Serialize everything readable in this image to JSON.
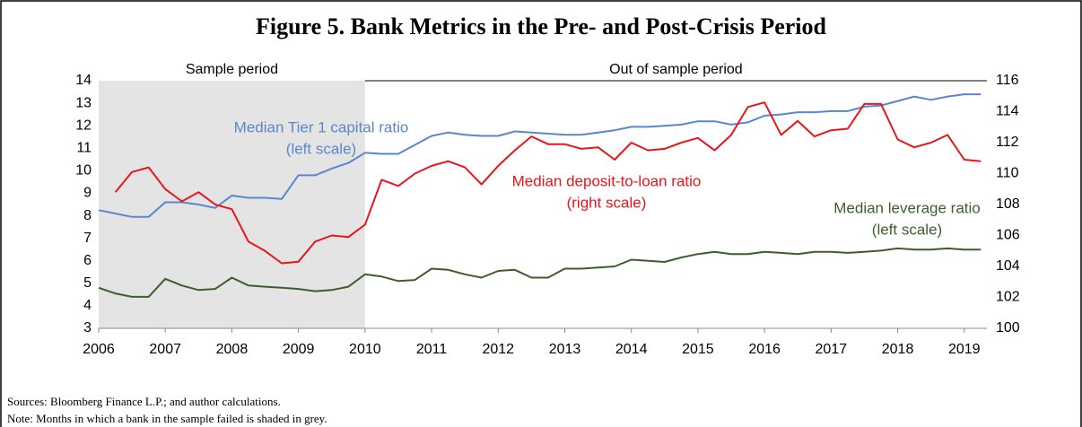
{
  "chart_data": {
    "type": "line",
    "title": "Figure 5. Bank Metrics in the Pre- and Post-Crisis Period",
    "sample_label": "Sample period",
    "out_of_sample_label": "Out of sample period",
    "shade_x": [
      2006,
      2010
    ],
    "x": [
      2006,
      2006.25,
      2006.5,
      2006.75,
      2007,
      2007.25,
      2007.5,
      2007.75,
      2008,
      2008.25,
      2008.5,
      2008.75,
      2009,
      2009.25,
      2009.5,
      2009.75,
      2010,
      2010.25,
      2010.5,
      2010.75,
      2011,
      2011.25,
      2011.5,
      2011.75,
      2012,
      2012.25,
      2012.5,
      2012.75,
      2013,
      2013.25,
      2013.5,
      2013.75,
      2014,
      2014.25,
      2014.5,
      2014.75,
      2015,
      2015.25,
      2015.5,
      2015.75,
      2016,
      2016.25,
      2016.5,
      2016.75,
      2017,
      2017.25,
      2017.5,
      2017.75,
      2018,
      2018.25,
      2018.5,
      2018.75,
      2019,
      2019.25
    ],
    "series": [
      {
        "name": "Median Tier 1 capital ratio",
        "scale_note": "(left scale)",
        "color": "#5a87cc",
        "axis": "y",
        "values": [
          8.25,
          8.1,
          7.95,
          7.95,
          8.6,
          8.6,
          8.5,
          8.35,
          8.9,
          8.8,
          8.8,
          8.75,
          9.8,
          9.8,
          10.1,
          10.35,
          10.8,
          10.75,
          10.75,
          11.15,
          11.55,
          11.7,
          11.6,
          11.55,
          11.55,
          11.75,
          11.7,
          11.65,
          11.6,
          11.6,
          11.7,
          11.8,
          11.95,
          11.95,
          12.0,
          12.05,
          12.2,
          12.2,
          12.05,
          12.15,
          12.45,
          12.5,
          12.6,
          12.6,
          12.65,
          12.65,
          12.85,
          12.9,
          13.1,
          13.3,
          13.15,
          13.3,
          13.4,
          13.4
        ]
      },
      {
        "name": "Median deposit-to-loan ratio",
        "scale_note": "(right scale)",
        "color": "#e8151c",
        "axis": "y2",
        "values": [
          null,
          108.8,
          110.1,
          110.4,
          109.0,
          108.2,
          108.8,
          108.0,
          107.7,
          105.6,
          105.0,
          104.2,
          104.3,
          105.6,
          106.0,
          105.9,
          106.7,
          109.6,
          109.2,
          110.0,
          110.5,
          110.8,
          110.4,
          109.3,
          110.5,
          111.5,
          112.4,
          111.9,
          111.9,
          111.6,
          111.7,
          110.9,
          112.0,
          111.5,
          111.6,
          112.0,
          112.3,
          111.5,
          112.5,
          114.3,
          114.6,
          112.5,
          113.4,
          112.4,
          112.8,
          112.9,
          114.5,
          114.5,
          112.2,
          111.7,
          112.0,
          112.5,
          110.9,
          110.8
        ]
      },
      {
        "name": "Median leverage ratio",
        "scale_note": "(left scale)",
        "color": "#3d5e2c",
        "axis": "y",
        "values": [
          4.8,
          4.55,
          4.4,
          4.4,
          5.2,
          4.9,
          4.7,
          4.75,
          5.25,
          4.9,
          4.85,
          4.8,
          4.75,
          4.65,
          4.7,
          4.85,
          5.4,
          5.3,
          5.1,
          5.15,
          5.65,
          5.6,
          5.4,
          5.25,
          5.55,
          5.6,
          5.25,
          5.25,
          5.65,
          5.65,
          5.7,
          5.75,
          6.05,
          6.0,
          5.95,
          6.15,
          6.3,
          6.4,
          6.3,
          6.3,
          6.4,
          6.35,
          6.3,
          6.4,
          6.4,
          6.35,
          6.4,
          6.45,
          6.55,
          6.5,
          6.5,
          6.55,
          6.5,
          6.5
        ]
      }
    ],
    "xlim": [
      2006,
      2019.34
    ],
    "xticks": [
      2006,
      2007,
      2008,
      2009,
      2010,
      2011,
      2012,
      2013,
      2014,
      2015,
      2016,
      2017,
      2018,
      2019
    ],
    "ylim": [
      3,
      14
    ],
    "yticks": [
      3,
      4,
      5,
      6,
      7,
      8,
      9,
      10,
      11,
      12,
      13,
      14
    ],
    "y2lim": [
      100,
      116
    ],
    "y2ticks": [
      100,
      102,
      104,
      106,
      108,
      110,
      112,
      114,
      116
    ],
    "sources": "Sources: Bloomberg Finance L.P.; and author calculations.",
    "note": "Note: Months in which a bank in the sample failed is shaded in grey."
  }
}
